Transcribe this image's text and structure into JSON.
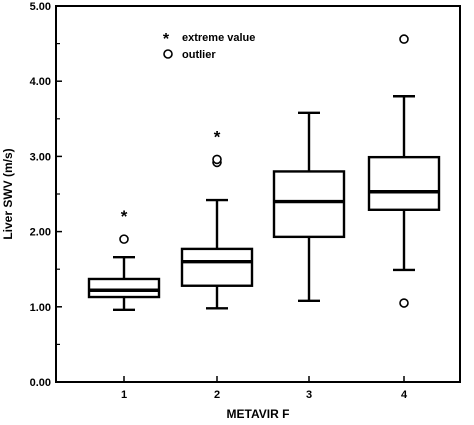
{
  "chart_data": {
    "type": "box",
    "xlabel": "METAVIR F",
    "ylabel": "Liver SWV (m/s)",
    "ylim": [
      0,
      5
    ],
    "yticks": [
      "0.00",
      "1.00",
      "2.00",
      "3.00",
      "4.00",
      "5.00"
    ],
    "categories": [
      "1",
      "2",
      "3",
      "4"
    ],
    "legend": {
      "placement": "top-center",
      "entries": [
        {
          "symbol": "*",
          "label": "extreme value"
        },
        {
          "symbol": "circle",
          "label": "outlier"
        }
      ]
    },
    "boxes": [
      {
        "category": "1",
        "min": 0.96,
        "q1": 1.13,
        "median": 1.22,
        "q3": 1.37,
        "max": 1.66,
        "outliers": [
          1.9
        ],
        "extremes": [
          2.22
        ]
      },
      {
        "category": "2",
        "min": 0.98,
        "q1": 1.28,
        "median": 1.6,
        "q3": 1.77,
        "max": 2.42,
        "outliers": [
          2.92,
          2.96
        ],
        "extremes": [
          3.28
        ]
      },
      {
        "category": "3",
        "min": 1.08,
        "q1": 1.93,
        "median": 2.4,
        "q3": 2.8,
        "max": 3.58,
        "outliers": [],
        "extremes": []
      },
      {
        "category": "4",
        "min": 1.49,
        "q1": 2.29,
        "median": 2.53,
        "q3": 2.99,
        "max": 3.8,
        "outliers": [
          1.05,
          4.56
        ],
        "extremes": []
      }
    ]
  }
}
